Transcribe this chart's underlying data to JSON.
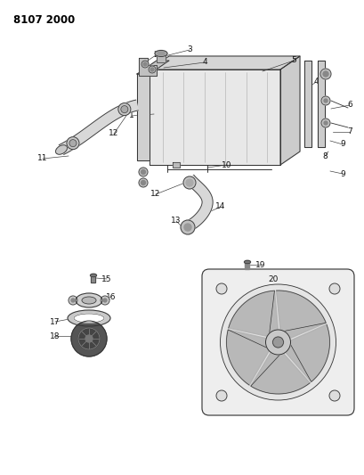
{
  "title": "8107 2000",
  "bg_color": "#ffffff",
  "lc": "#333333",
  "lw": 0.7,
  "fig_width": 4.1,
  "fig_height": 5.33,
  "dpi": 100
}
